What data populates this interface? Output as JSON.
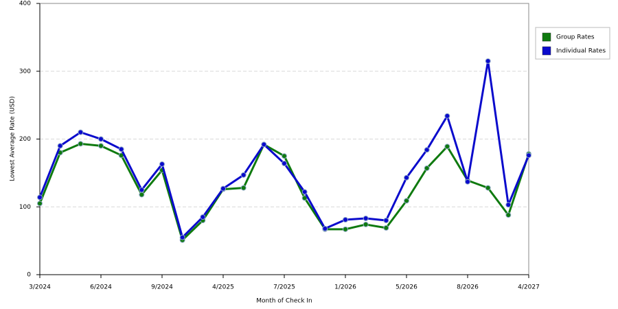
{
  "chart_data": {
    "type": "line",
    "x_label": "Month of Check In",
    "y_label": "Lowest Average Rate (USD)",
    "categories": [
      "3/2024",
      null,
      null,
      "6/2024",
      null,
      null,
      "9/2024",
      null,
      null,
      "4/2025",
      null,
      null,
      "7/2025",
      null,
      null,
      "1/2026",
      null,
      null,
      "5/2026",
      null,
      null,
      "8/2026",
      null,
      null,
      "4/2027"
    ],
    "series": [
      {
        "name": "Group Rates",
        "color": "#0f7a0f",
        "values": [
          105,
          180,
          193,
          190,
          176,
          118,
          154,
          51,
          80,
          126,
          128,
          192,
          175,
          113,
          67,
          67,
          74,
          69,
          109,
          157,
          189,
          139,
          128,
          88,
          178
        ]
      },
      {
        "name": "Individual Rates",
        "color": "#0a0acc",
        "values": [
          114,
          190,
          210,
          200,
          185,
          125,
          163,
          55,
          85,
          127,
          147,
          192,
          164,
          122,
          68,
          81,
          83,
          80,
          143,
          184,
          234,
          137,
          315,
          103,
          176
        ]
      }
    ],
    "ylim": [
      0,
      400
    ],
    "yticks": [
      0,
      100,
      200,
      300,
      400
    ],
    "grid": true,
    "legend": "right"
  }
}
